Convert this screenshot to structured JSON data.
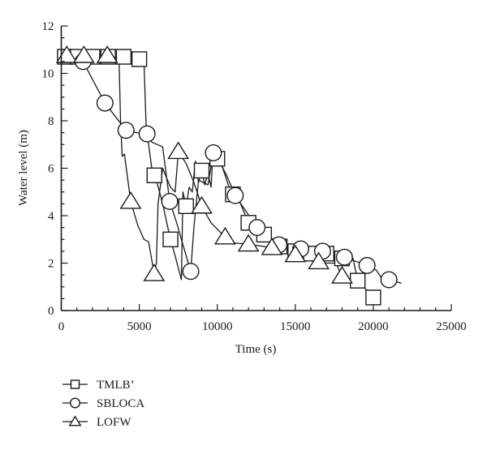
{
  "chart_data": {
    "type": "line",
    "title": "",
    "xlabel": "Time (s)",
    "ylabel": "Water level (m)",
    "xlim": [
      0,
      25000
    ],
    "ylim": [
      0,
      12
    ],
    "x_ticks": [
      0,
      5000,
      10000,
      15000,
      20000,
      25000
    ],
    "x_tick_labels": [
      "0",
      "5000",
      "10000",
      "15000",
      "20000",
      "25000"
    ],
    "x_minor_step": 1000,
    "y_ticks": [
      0,
      2,
      4,
      6,
      8,
      10,
      12
    ],
    "y_tick_labels": [
      "0",
      "2",
      "4",
      "6",
      "8",
      "10",
      "12"
    ],
    "y_minor_step": 0.5,
    "grid": false,
    "legend_position": "bottom-left-below",
    "color": "#1a1a1a",
    "series": [
      {
        "name": "TMLB’",
        "marker": "square",
        "line": [
          [
            0,
            11.0
          ],
          [
            300,
            10.65
          ],
          [
            5000,
            10.6
          ],
          [
            5300,
            10.5
          ],
          [
            5450,
            7.6
          ],
          [
            5600,
            7.0
          ],
          [
            5800,
            6.0
          ],
          [
            6000,
            5.7
          ],
          [
            6300,
            5.0
          ],
          [
            6500,
            4.5
          ],
          [
            7000,
            3.0
          ],
          [
            7300,
            2.3
          ],
          [
            7700,
            1.3
          ],
          [
            7800,
            5.0
          ],
          [
            8000,
            4.4
          ],
          [
            8200,
            5.2
          ],
          [
            8400,
            5.0
          ],
          [
            8600,
            6.3
          ],
          [
            8800,
            5.4
          ],
          [
            9000,
            5.9
          ],
          [
            9200,
            5.3
          ],
          [
            9400,
            5.8
          ],
          [
            9600,
            5.2
          ],
          [
            9700,
            6.3
          ],
          [
            10000,
            6.4
          ],
          [
            10300,
            6.1
          ],
          [
            10700,
            5.3
          ],
          [
            11000,
            4.9
          ],
          [
            11500,
            4.5
          ],
          [
            12000,
            3.7
          ],
          [
            13000,
            3.2
          ],
          [
            14000,
            2.7
          ],
          [
            15000,
            2.5
          ],
          [
            16000,
            2.4
          ],
          [
            17000,
            2.4
          ],
          [
            18000,
            2.2
          ],
          [
            18700,
            2.2
          ],
          [
            19000,
            1.26
          ],
          [
            20000,
            0.55
          ]
        ],
        "markers": [
          [
            230,
            10.7
          ],
          [
            1060,
            10.7
          ],
          [
            2000,
            10.7
          ],
          [
            3000,
            10.7
          ],
          [
            4000,
            10.7
          ],
          [
            5000,
            10.6
          ],
          [
            5970,
            5.7
          ],
          [
            7000,
            3.0
          ],
          [
            8000,
            4.4
          ],
          [
            9000,
            5.9
          ],
          [
            10000,
            6.4
          ],
          [
            11000,
            4.9
          ],
          [
            12000,
            3.7
          ],
          [
            13000,
            3.2
          ],
          [
            14000,
            2.7
          ],
          [
            15000,
            2.5
          ],
          [
            16000,
            2.4
          ],
          [
            17000,
            2.4
          ],
          [
            18000,
            2.2
          ],
          [
            19000,
            1.26
          ],
          [
            20000,
            0.55
          ]
        ]
      },
      {
        "name": "SBLOCA",
        "marker": "circle",
        "line": [
          [
            0,
            11.0
          ],
          [
            1400,
            10.5
          ],
          [
            2800,
            8.75
          ],
          [
            4150,
            7.6
          ],
          [
            4800,
            7.5
          ],
          [
            5500,
            7.45
          ],
          [
            5800,
            7.1
          ],
          [
            6500,
            6.9
          ],
          [
            6950,
            4.6
          ],
          [
            7400,
            3.7
          ],
          [
            7700,
            3.0
          ],
          [
            8300,
            1.65
          ],
          [
            8500,
            3.5
          ],
          [
            8800,
            5.5
          ],
          [
            9400,
            5.3
          ],
          [
            9750,
            6.65
          ],
          [
            10200,
            6.2
          ],
          [
            10600,
            5.7
          ],
          [
            11150,
            4.85
          ],
          [
            12550,
            3.5
          ],
          [
            13950,
            2.77
          ],
          [
            15350,
            2.6
          ],
          [
            16750,
            2.5
          ],
          [
            18150,
            2.25
          ],
          [
            19600,
            1.9
          ],
          [
            20200,
            1.7
          ],
          [
            20500,
            1.4
          ],
          [
            21000,
            1.3
          ],
          [
            21800,
            1.15
          ]
        ],
        "markers": [
          [
            1400,
            10.5
          ],
          [
            2800,
            8.75
          ],
          [
            4150,
            7.6
          ],
          [
            5500,
            7.45
          ],
          [
            6950,
            4.6
          ],
          [
            8300,
            1.65
          ],
          [
            9750,
            6.65
          ],
          [
            11150,
            4.85
          ],
          [
            12550,
            3.5
          ],
          [
            13950,
            2.77
          ],
          [
            15350,
            2.6
          ],
          [
            16750,
            2.5
          ],
          [
            18150,
            2.25
          ],
          [
            19600,
            1.9
          ],
          [
            21000,
            1.3
          ]
        ]
      },
      {
        "name": "LOFW",
        "marker": "triangle",
        "line": [
          [
            0,
            11.0
          ],
          [
            350,
            10.75
          ],
          [
            3700,
            10.7
          ],
          [
            3800,
            8.0
          ],
          [
            3900,
            6.5
          ],
          [
            4050,
            6.6
          ],
          [
            4450,
            4.6
          ],
          [
            4900,
            3.6
          ],
          [
            5300,
            3.0
          ],
          [
            5600,
            2.9
          ],
          [
            5950,
            1.55
          ],
          [
            6100,
            2.0
          ],
          [
            6200,
            4.5
          ],
          [
            6500,
            6.0
          ],
          [
            7000,
            5.2
          ],
          [
            7300,
            5.0
          ],
          [
            7500,
            6.7
          ],
          [
            8000,
            6.2
          ],
          [
            8500,
            5.4
          ],
          [
            9000,
            4.4
          ],
          [
            9600,
            3.7
          ],
          [
            10500,
            3.1
          ],
          [
            11000,
            2.85
          ],
          [
            12000,
            2.8
          ],
          [
            13500,
            2.65
          ],
          [
            15000,
            2.35
          ],
          [
            16500,
            2.05
          ],
          [
            17000,
            2.0
          ],
          [
            17600,
            2.0
          ],
          [
            18000,
            1.45
          ]
        ],
        "markers": [
          [
            350,
            10.75
          ],
          [
            1450,
            10.75
          ],
          [
            2950,
            10.75
          ],
          [
            4450,
            4.6
          ],
          [
            5950,
            1.55
          ],
          [
            7500,
            6.7
          ],
          [
            9000,
            4.4
          ],
          [
            10500,
            3.1
          ],
          [
            12000,
            2.8
          ],
          [
            13500,
            2.65
          ],
          [
            15000,
            2.35
          ],
          [
            16500,
            2.05
          ],
          [
            18000,
            1.45
          ]
        ]
      }
    ]
  }
}
